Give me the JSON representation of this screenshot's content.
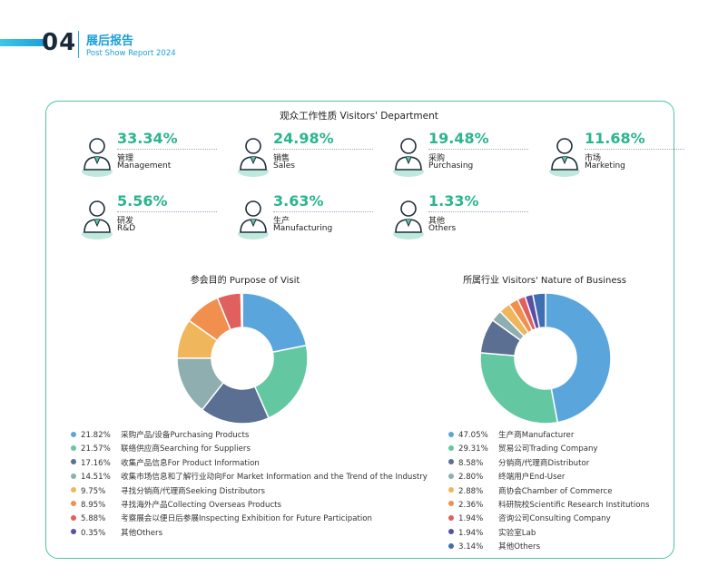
{
  "header": {
    "number": "04",
    "title_cn": "展后报告",
    "title_en": "Post Show Report 2024"
  },
  "department": {
    "title": "观众工作性质 Visitors' Department",
    "items": [
      {
        "pct": "33.34%",
        "cn": "管理",
        "en": "Management",
        "icon": "manager-icon"
      },
      {
        "pct": "24.98%",
        "cn": "销售",
        "en": "Sales",
        "icon": "sales-person-icon"
      },
      {
        "pct": "19.48%",
        "cn": "采购",
        "en": "Purchasing",
        "icon": "purchasing-person-icon"
      },
      {
        "pct": "11.68%",
        "cn": "市场",
        "en": "Marketing",
        "icon": "marketing-person-icon"
      },
      {
        "pct": "5.56%",
        "cn": "研发",
        "en": "R&D",
        "icon": "scientist-icon"
      },
      {
        "pct": "3.63%",
        "cn": "生产",
        "en": "Manufacturing",
        "icon": "worker-hardhat-icon"
      },
      {
        "pct": "1.33%",
        "cn": "其他",
        "en": "Others",
        "icon": "person-balance-icon"
      }
    ]
  },
  "chart_data": [
    {
      "type": "pie",
      "title": "参会目的 Purpose of Visit",
      "slices": [
        {
          "label": "采购产品/设备Purchasing Products",
          "pct": "21.82%",
          "value": 21.82,
          "color": "#5aa6dc"
        },
        {
          "label": "联络供应商Searching for Suppliers",
          "pct": "21.57%",
          "value": 21.57,
          "color": "#63c7a1"
        },
        {
          "label": "收集产品信息For Product Information",
          "pct": "17.16%",
          "value": 17.16,
          "color": "#5a6f92"
        },
        {
          "label": "收集市场信息和了解行业动向For Market Information and the Trend of the Industry",
          "pct": "14.51%",
          "value": 14.51,
          "color": "#8eaeb0"
        },
        {
          "label": "寻找分销商/代理商Seeking Distributors",
          "pct": "9.75%",
          "value": 9.75,
          "color": "#f0b65c"
        },
        {
          "label": "寻找海外产品Collecting Overseas Products",
          "pct": "8.95%",
          "value": 8.95,
          "color": "#f1904e"
        },
        {
          "label": "考察展会以便日后参展Inspecting Exhibition for Future Participation",
          "pct": "5.88%",
          "value": 5.88,
          "color": "#e05f5f"
        },
        {
          "label": "其他Others",
          "pct": "0.35%",
          "value": 0.35,
          "color": "#5a4fa6"
        }
      ]
    },
    {
      "type": "pie",
      "title": "所属行业 Visitors' Nature of Business",
      "slices": [
        {
          "label": "生产商Manufacturer",
          "pct": "47.05%",
          "value": 47.05,
          "color": "#5aa6dc"
        },
        {
          "label": "贸易公司Trading Company",
          "pct": "29.31%",
          "value": 29.31,
          "color": "#63c7a1"
        },
        {
          "label": "分销商/代理商Distributor",
          "pct": "8.58%",
          "value": 8.58,
          "color": "#5a6f92"
        },
        {
          "label": "终端用户End-User",
          "pct": "2.80%",
          "value": 2.8,
          "color": "#8eaeb0"
        },
        {
          "label": "商协会Chamber of Commerce",
          "pct": "2.88%",
          "value": 2.88,
          "color": "#f0b65c"
        },
        {
          "label": "科研院校Scientific Research Institutions",
          "pct": "2.36%",
          "value": 2.36,
          "color": "#f1904e"
        },
        {
          "label": "咨询公司Consulting Company",
          "pct": "1.94%",
          "value": 1.94,
          "color": "#e05f5f"
        },
        {
          "label": "实验室Lab",
          "pct": "1.94%",
          "value": 1.94,
          "color": "#5a4fa6"
        },
        {
          "label": "其他Others",
          "pct": "3.14%",
          "value": 3.14,
          "color": "#3f6fb0"
        }
      ]
    }
  ]
}
